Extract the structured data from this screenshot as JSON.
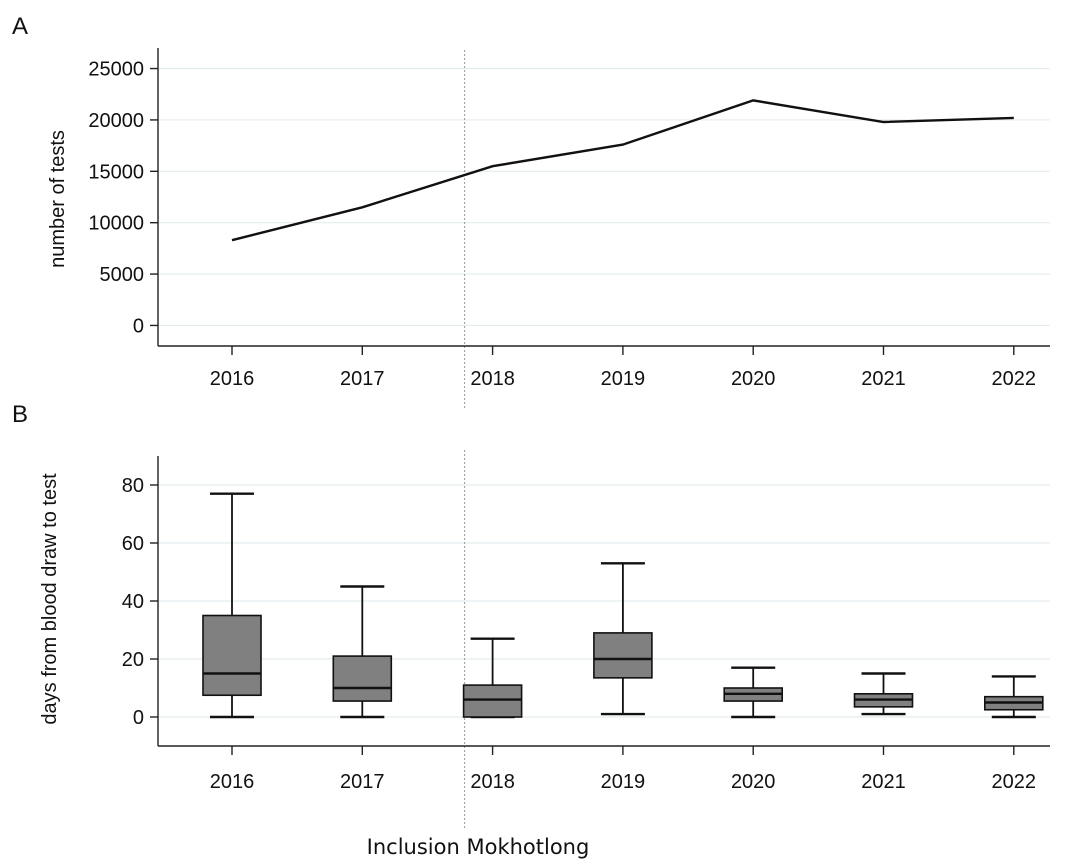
{
  "chart_data": [
    {
      "panel": "A",
      "type": "line",
      "title": "",
      "xlabel": "",
      "ylabel": "number of tests",
      "x": [
        "2016",
        "2017",
        "2018",
        "2019",
        "2020",
        "2021",
        "2022"
      ],
      "series": [
        {
          "values": [
            8300,
            11500,
            15500,
            17600,
            21900,
            19800,
            20200
          ]
        }
      ],
      "ylim": [
        -2000,
        27000
      ],
      "yticks": [
        0,
        5000,
        10000,
        15000,
        20000,
        25000
      ],
      "grid": true,
      "reference_line_x": "2018"
    },
    {
      "panel": "B",
      "type": "box",
      "title": "",
      "xlabel": "",
      "ylabel": "days from blood draw to test",
      "categories": [
        "2016",
        "2017",
        "2018",
        "2019",
        "2020",
        "2021",
        "2022"
      ],
      "boxes": [
        {
          "whisker_low": 0,
          "q1": 7.5,
          "median": 15,
          "q3": 35,
          "whisker_high": 77
        },
        {
          "whisker_low": 0,
          "q1": 5.5,
          "median": 10,
          "q3": 21,
          "whisker_high": 45
        },
        {
          "whisker_low": 0,
          "q1": 0,
          "median": 6,
          "q3": 11,
          "whisker_high": 27
        },
        {
          "whisker_low": 1,
          "q1": 13.5,
          "median": 20,
          "q3": 29,
          "whisker_high": 53
        },
        {
          "whisker_low": 0,
          "q1": 5.5,
          "median": 8,
          "q3": 10,
          "whisker_high": 17
        },
        {
          "whisker_low": 1,
          "q1": 3.5,
          "median": 6,
          "q3": 8,
          "whisker_high": 15
        },
        {
          "whisker_low": 0,
          "q1": 2.5,
          "median": 5,
          "q3": 7,
          "whisker_high": 14
        }
      ],
      "ylim": [
        -10,
        90
      ],
      "yticks": [
        0,
        20,
        40,
        60,
        80
      ],
      "grid": true,
      "reference_line_x": "2018"
    }
  ],
  "annotation": "Inclusion Mokhotlong",
  "colors": {
    "box_fill": "#808080",
    "line": "#111111",
    "grid": "#e3ecef"
  }
}
